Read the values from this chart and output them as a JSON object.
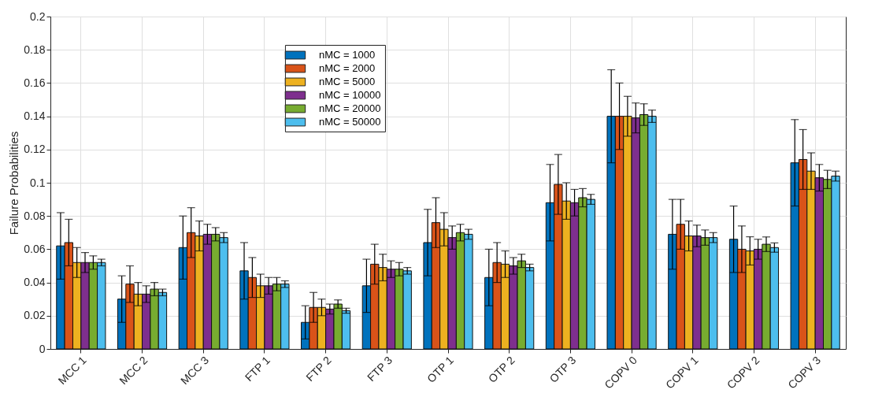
{
  "chart_data": {
    "type": "bar",
    "ylabel": "Failure Probabilities",
    "categories": [
      "MCC 1",
      "MCC 2",
      "MCC 3",
      "FTP 1",
      "FTP 2",
      "FTP 3",
      "OTP 1",
      "OTP 2",
      "OTP 3",
      "COPV 0",
      "COPV 1",
      "COPV 2",
      "COPV 3"
    ],
    "series": [
      {
        "name": "nMC = 1000",
        "color": "#0072bd",
        "values": [
          0.062,
          0.03,
          0.061,
          0.047,
          0.016,
          0.038,
          0.064,
          0.043,
          0.088,
          0.14,
          0.069,
          0.066,
          0.112
        ],
        "errors": [
          0.02,
          0.014,
          0.019,
          0.017,
          0.01,
          0.016,
          0.02,
          0.017,
          0.023,
          0.028,
          0.021,
          0.02,
          0.026
        ]
      },
      {
        "name": "nMC = 2000",
        "color": "#d95319",
        "values": [
          0.064,
          0.039,
          0.07,
          0.043,
          0.025,
          0.051,
          0.076,
          0.052,
          0.099,
          0.14,
          0.075,
          0.06,
          0.114
        ],
        "errors": [
          0.014,
          0.011,
          0.015,
          0.012,
          0.009,
          0.012,
          0.015,
          0.012,
          0.018,
          0.02,
          0.015,
          0.014,
          0.018
        ]
      },
      {
        "name": "nMC = 5000",
        "color": "#edb120",
        "values": [
          0.052,
          0.033,
          0.068,
          0.038,
          0.025,
          0.049,
          0.072,
          0.051,
          0.089,
          0.14,
          0.068,
          0.059,
          0.107
        ],
        "errors": [
          0.009,
          0.007,
          0.009,
          0.007,
          0.005,
          0.008,
          0.01,
          0.008,
          0.011,
          0.012,
          0.009,
          0.0085,
          0.011
        ]
      },
      {
        "name": "nMC = 10000",
        "color": "#7e2f8e",
        "values": [
          0.052,
          0.033,
          0.069,
          0.038,
          0.024,
          0.048,
          0.067,
          0.05,
          0.088,
          0.139,
          0.068,
          0.06,
          0.103
        ],
        "errors": [
          0.006,
          0.005,
          0.006,
          0.005,
          0.003,
          0.005,
          0.007,
          0.005,
          0.008,
          0.009,
          0.0065,
          0.006,
          0.008
        ]
      },
      {
        "name": "nMC = 20000",
        "color": "#77ac30",
        "values": [
          0.052,
          0.036,
          0.069,
          0.039,
          0.027,
          0.048,
          0.07,
          0.053,
          0.091,
          0.141,
          0.067,
          0.063,
          0.102
        ],
        "errors": [
          0.004,
          0.004,
          0.004,
          0.004,
          0.0025,
          0.004,
          0.005,
          0.004,
          0.0055,
          0.0065,
          0.0046,
          0.0044,
          0.0055
        ]
      },
      {
        "name": "nMC = 50000",
        "color": "#4dbeee",
        "values": [
          0.052,
          0.034,
          0.067,
          0.039,
          0.023,
          0.047,
          0.069,
          0.049,
          0.09,
          0.14,
          0.067,
          0.061,
          0.104
        ],
        "errors": [
          0.002,
          0.002,
          0.003,
          0.002,
          0.0015,
          0.002,
          0.003,
          0.002,
          0.003,
          0.0037,
          0.003,
          0.0028,
          0.003
        ]
      }
    ],
    "ylim": [
      0,
      0.2
    ],
    "yticks": [
      0,
      0.02,
      0.04,
      0.06,
      0.08,
      0.1,
      0.12,
      0.14,
      0.16,
      0.18,
      0.2
    ],
    "grid": true,
    "legend": "top"
  }
}
